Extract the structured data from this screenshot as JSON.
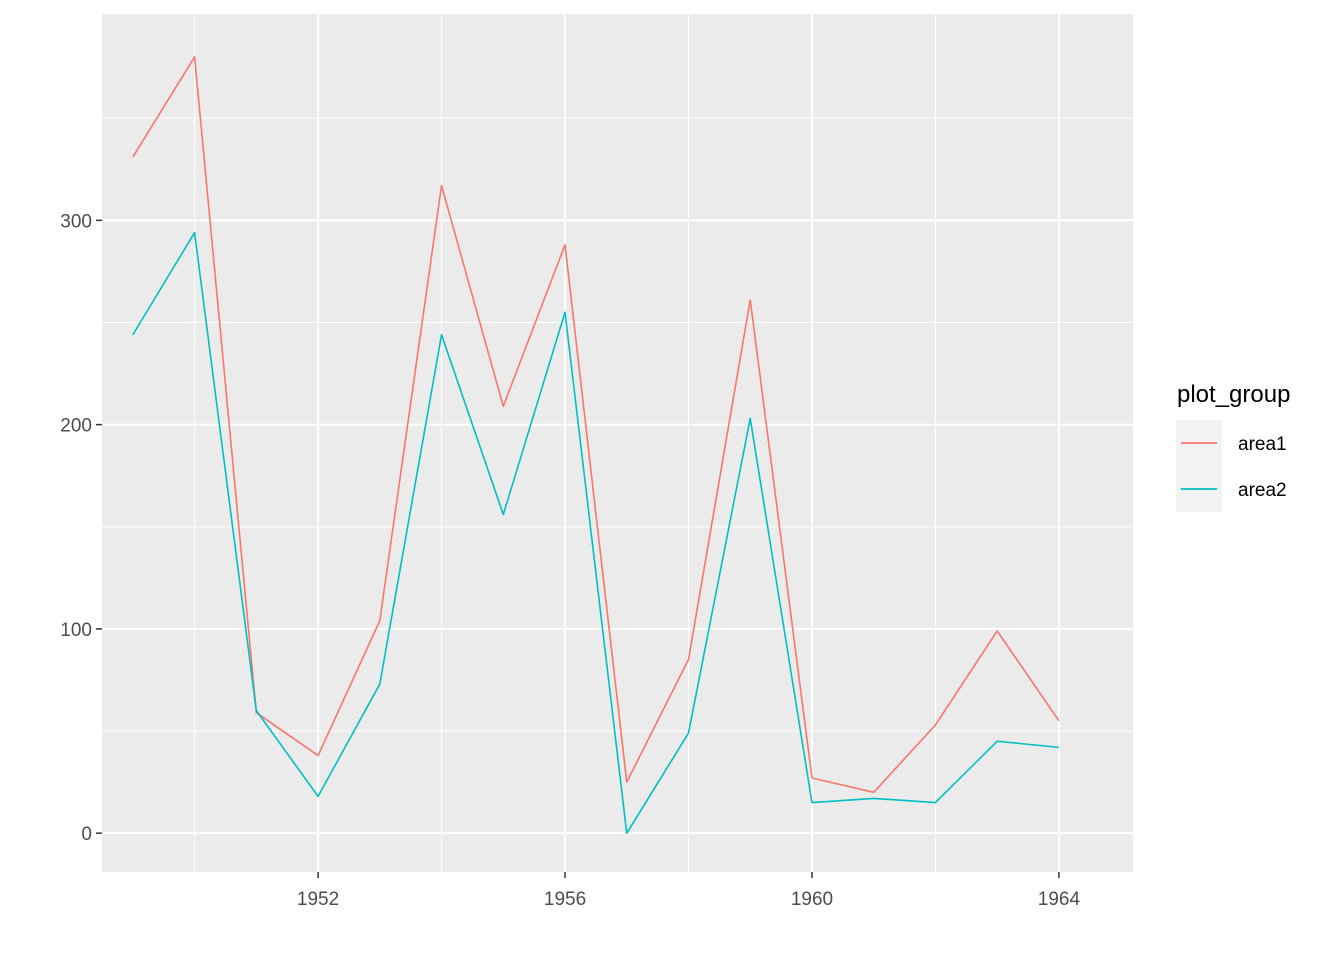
{
  "chart_data": {
    "type": "line",
    "title": "",
    "xlabel": "",
    "ylabel": "",
    "x": [
      1949,
      1950,
      1951,
      1952,
      1953,
      1954,
      1955,
      1956,
      1957,
      1958,
      1959,
      1960,
      1961,
      1962,
      1963,
      1964
    ],
    "series": [
      {
        "name": "area1",
        "color": "#F8766D",
        "values": [
          331,
          380,
          59,
          38,
          104,
          317,
          209,
          288,
          25,
          85,
          261,
          27,
          20,
          53,
          99,
          55
        ]
      },
      {
        "name": "area2",
        "color": "#00BFC4",
        "values": [
          244,
          294,
          60,
          18,
          73,
          244,
          156,
          255,
          0,
          49,
          203,
          15,
          17,
          15,
          45,
          42
        ]
      }
    ],
    "xlim": [
      1948.5,
      1965.2
    ],
    "ylim": [
      -19,
      401
    ],
    "x_ticks": [
      1952,
      1956,
      1960,
      1964
    ],
    "x_minor_ticks": [
      1950,
      1954,
      1958,
      1962
    ],
    "y_ticks": [
      0,
      100,
      200,
      300
    ],
    "y_minor_ticks": [
      50,
      150,
      250,
      350
    ],
    "grid": true,
    "panel_background": "#EBEBEB",
    "grid_color": "#FFFFFF",
    "legend": {
      "title": "plot_group",
      "position": "right",
      "entries": [
        "area1",
        "area2"
      ]
    }
  }
}
